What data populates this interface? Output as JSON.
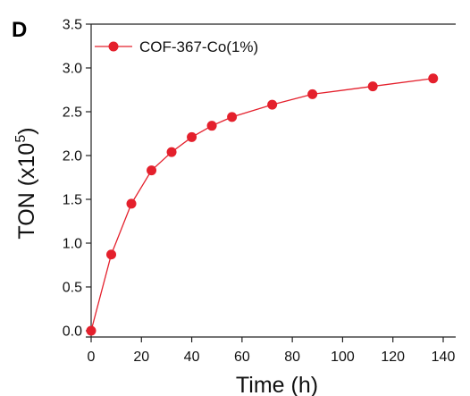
{
  "panel_label": "D",
  "colors": {
    "series": "#e4202c",
    "axis": "#222222",
    "background": "#ffffff"
  },
  "chart_data": {
    "type": "line",
    "title": "",
    "xlabel": "Time (h)",
    "ylabel": {
      "text": "TON (x10",
      "superscript": "5",
      "suffix": ")"
    },
    "xlim": [
      0,
      140
    ],
    "ylim": [
      0,
      3.5
    ],
    "xticks": [
      "0",
      "20",
      "40",
      "60",
      "80",
      "100",
      "120",
      "140"
    ],
    "yticks": [
      "0.0",
      "0.5",
      "1.0",
      "1.5",
      "2.0",
      "2.5",
      "3.0",
      "3.5"
    ],
    "legend_position": "top-left",
    "grid": false,
    "series": [
      {
        "name": "COF-367-Co(1%)",
        "marker": "circle",
        "x": [
          0,
          8,
          16,
          24,
          32,
          40,
          48,
          56,
          72,
          88,
          112,
          136
        ],
        "y": [
          0.0,
          0.87,
          1.45,
          1.83,
          2.04,
          2.21,
          2.34,
          2.44,
          2.58,
          2.7,
          2.79,
          2.88
        ]
      }
    ]
  }
}
